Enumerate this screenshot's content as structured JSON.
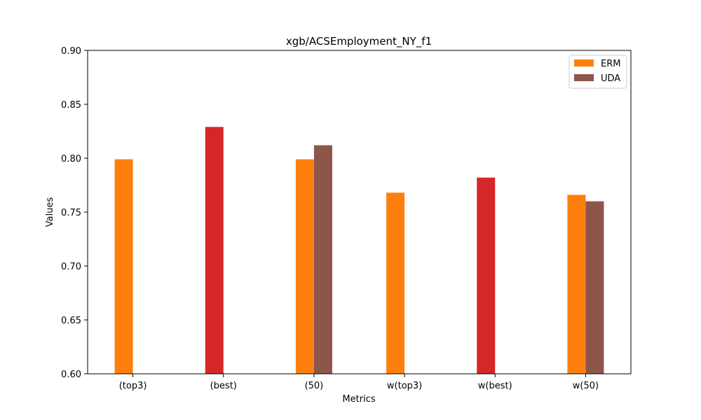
{
  "chart_data": {
    "type": "bar",
    "title": "xgb/ACSEmployment_NY_f1",
    "xlabel": "Metrics",
    "ylabel": "Values",
    "ylim": [
      0.6,
      0.9
    ],
    "yticks": [
      "0.60",
      "0.65",
      "0.70",
      "0.75",
      "0.80",
      "0.85",
      "0.90"
    ],
    "grid": false,
    "legend_position": "top-right",
    "categories": [
      "(top3)",
      "(best)",
      "(50)",
      "w(top3)",
      "w(best)",
      "w(50)"
    ],
    "series": [
      {
        "name": "ERM",
        "color": "#ff7f0e",
        "slot": "left",
        "values": [
          0.799,
          null,
          0.799,
          0.768,
          null,
          0.766
        ]
      },
      {
        "name": "UDA",
        "color": "#8c564b",
        "slot": "right",
        "values": [
          null,
          null,
          0.812,
          null,
          null,
          0.76
        ]
      },
      {
        "color": "#d62728",
        "slot": "left",
        "values": [
          null,
          0.829,
          null,
          null,
          0.782,
          null
        ]
      }
    ]
  }
}
